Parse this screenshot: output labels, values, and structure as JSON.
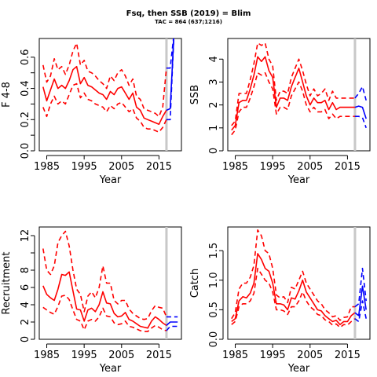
{
  "header": {
    "title": "Fsq, then SSB (2019) = Blim",
    "subtitle": "TAC = 864 (637;1216)"
  },
  "colors": {
    "history": "#ff0000",
    "projection": "#0000ff",
    "marker": "#c8c8c8"
  },
  "chart_data": [
    {
      "type": "line",
      "ylabel": "F 4-8",
      "xlabel": "Year",
      "xlim": [
        1983,
        2021
      ],
      "ylim": [
        0,
        0.72
      ],
      "xticks": [
        1985,
        1995,
        2005,
        2015
      ],
      "yticks": [
        0.0,
        0.1,
        0.2,
        0.3,
        0.4,
        0.5,
        0.6
      ],
      "ytick_labels": [
        "0.0",
        "",
        "0.2",
        "",
        "0.4",
        "",
        "0.6"
      ],
      "marker_year": 2017,
      "x": [
        1984,
        1985,
        1986,
        1987,
        1988,
        1989,
        1990,
        1991,
        1992,
        1993,
        1994,
        1995,
        1996,
        1997,
        1998,
        1999,
        2000,
        2001,
        2002,
        2003,
        2004,
        2005,
        2006,
        2007,
        2008,
        2009,
        2010,
        2011,
        2012,
        2013,
        2014,
        2015,
        2016,
        2017
      ],
      "series": [
        {
          "values": [
            0.41,
            0.32,
            0.39,
            0.46,
            0.4,
            0.42,
            0.4,
            0.45,
            0.52,
            0.54,
            0.43,
            0.47,
            0.42,
            0.41,
            0.39,
            0.37,
            0.36,
            0.33,
            0.38,
            0.36,
            0.4,
            0.41,
            0.37,
            0.33,
            0.37,
            0.28,
            0.26,
            0.21,
            0.2,
            0.19,
            0.18,
            0.17,
            0.22,
            0.26
          ],
          "style": "solid"
        },
        {
          "values": [
            0.55,
            0.44,
            0.48,
            0.59,
            0.52,
            0.54,
            0.49,
            0.55,
            0.64,
            0.69,
            0.55,
            0.58,
            0.51,
            0.5,
            0.48,
            0.45,
            0.43,
            0.4,
            0.48,
            0.45,
            0.5,
            0.52,
            0.48,
            0.42,
            0.46,
            0.35,
            0.33,
            0.27,
            0.26,
            0.25,
            0.24,
            0.22,
            0.28,
            0.53
          ],
          "style": "dashed"
        },
        {
          "values": [
            0.28,
            0.22,
            0.3,
            0.35,
            0.3,
            0.32,
            0.3,
            0.36,
            0.42,
            0.43,
            0.34,
            0.37,
            0.33,
            0.32,
            0.3,
            0.29,
            0.28,
            0.25,
            0.29,
            0.27,
            0.3,
            0.31,
            0.28,
            0.25,
            0.27,
            0.21,
            0.19,
            0.15,
            0.14,
            0.14,
            0.13,
            0.12,
            0.15,
            0.2
          ],
          "style": "dashed"
        }
      ],
      "projection": {
        "x": [
          2017,
          2018,
          2019
        ],
        "series": [
          {
            "values": [
              0.26,
              0.27,
              0.75
            ],
            "style": "solid"
          },
          {
            "values": [
              0.53,
              0.53,
              0.75
            ],
            "style": "dashed"
          },
          {
            "values": [
              0.2,
              0.2,
              0.75
            ],
            "style": "dashed"
          }
        ]
      }
    },
    {
      "type": "line",
      "ylabel": "SSB",
      "xlabel": "Year",
      "xlim": [
        1983,
        2021
      ],
      "ylim": [
        0,
        4.9
      ],
      "xticks": [
        1985,
        1995,
        2005,
        2015
      ],
      "yticks": [
        0,
        1,
        2,
        3,
        4
      ],
      "ytick_labels": [
        "0",
        "1",
        "2",
        "3",
        "4"
      ],
      "marker_year": 2017,
      "x": [
        1984,
        1985,
        1986,
        1987,
        1988,
        1989,
        1990,
        1991,
        1992,
        1993,
        1994,
        1995,
        1996,
        1997,
        1998,
        1999,
        2000,
        2001,
        2002,
        2003,
        2004,
        2005,
        2006,
        2007,
        2008,
        2009,
        2010,
        2011,
        2012,
        2013,
        2014,
        2015,
        2016,
        2017
      ],
      "series": [
        {
          "values": [
            0.9,
            1.1,
            2.1,
            2.2,
            2.2,
            2.7,
            3.3,
            4.1,
            3.9,
            4.1,
            3.5,
            3.2,
            1.9,
            2.3,
            2.3,
            2.2,
            2.8,
            3.2,
            3.6,
            3.0,
            2.4,
            2.0,
            2.3,
            2.1,
            2.1,
            2.2,
            1.8,
            2.1,
            1.8,
            1.9,
            1.9,
            1.9,
            1.9,
            1.9
          ],
          "style": "solid"
        },
        {
          "values": [
            1.1,
            1.3,
            2.5,
            2.5,
            2.5,
            3.1,
            3.8,
            4.7,
            4.6,
            4.7,
            4.0,
            3.7,
            2.2,
            2.6,
            2.6,
            2.5,
            3.2,
            3.6,
            4.0,
            3.5,
            2.9,
            2.4,
            2.7,
            2.4,
            2.5,
            2.7,
            2.2,
            2.6,
            2.3,
            2.3,
            2.3,
            2.3,
            2.3,
            2.3
          ],
          "style": "dashed"
        },
        {
          "values": [
            0.7,
            0.9,
            1.7,
            1.9,
            1.9,
            2.3,
            2.8,
            3.4,
            3.3,
            3.4,
            3.0,
            2.7,
            1.6,
            1.9,
            1.9,
            1.8,
            2.4,
            2.7,
            3.0,
            2.6,
            2.0,
            1.7,
            1.9,
            1.7,
            1.7,
            1.8,
            1.4,
            1.6,
            1.4,
            1.5,
            1.5,
            1.5,
            1.5,
            1.5
          ],
          "style": "dashed"
        }
      ],
      "projection": {
        "x": [
          2017,
          2018,
          2019,
          2020
        ],
        "series": [
          {
            "values": [
              1.9,
              1.95,
              1.9,
              1.4
            ],
            "style": "solid"
          },
          {
            "values": [
              2.3,
              2.5,
              2.8,
              2.2
            ],
            "style": "dashed"
          },
          {
            "values": [
              1.5,
              1.5,
              1.45,
              1.0
            ],
            "style": "dashed"
          }
        ]
      }
    },
    {
      "type": "line",
      "ylabel": "Recruitment",
      "xlabel": "Year",
      "xlim": [
        1983,
        2021
      ],
      "ylim": [
        0,
        13
      ],
      "xticks": [
        1985,
        1995,
        2005,
        2015
      ],
      "yticks": [
        0,
        2,
        4,
        6,
        8,
        10,
        12
      ],
      "ytick_labels": [
        "0",
        "2",
        "4",
        "6",
        "8",
        "",
        "12"
      ],
      "marker_year": 2017,
      "x": [
        1984,
        1985,
        1986,
        1987,
        1988,
        1989,
        1990,
        1991,
        1992,
        1993,
        1994,
        1995,
        1996,
        1997,
        1998,
        1999,
        2000,
        2001,
        2002,
        2003,
        2004,
        2005,
        2006,
        2007,
        2008,
        2009,
        2010,
        2011,
        2012,
        2013,
        2014,
        2015,
        2016,
        2017
      ],
      "series": [
        {
          "values": [
            6.2,
            5.2,
            4.8,
            4.5,
            5.8,
            7.5,
            7.4,
            7.8,
            5.6,
            3.5,
            3.4,
            2.1,
            3.4,
            3.6,
            3.2,
            4.0,
            5.5,
            4.2,
            4.1,
            3.0,
            2.6,
            2.7,
            3.1,
            2.3,
            2.1,
            1.8,
            1.5,
            1.4,
            1.3,
            2.1,
            2.6,
            2.3,
            1.9,
            1.6
          ],
          "style": "solid"
        },
        {
          "values": [
            10.5,
            8.0,
            7.5,
            8.5,
            11.2,
            12.0,
            12.5,
            10.8,
            8.0,
            5.8,
            5.2,
            3.2,
            5.0,
            5.5,
            4.8,
            6.0,
            8.5,
            6.5,
            6.5,
            4.5,
            4.1,
            4.5,
            4.5,
            3.5,
            3.0,
            2.7,
            2.4,
            2.3,
            2.4,
            3.3,
            3.9,
            3.7,
            3.6,
            2.6
          ],
          "style": "dashed"
        },
        {
          "values": [
            3.7,
            3.4,
            3.1,
            2.9,
            3.8,
            5.0,
            5.1,
            4.6,
            3.4,
            2.3,
            2.1,
            1.1,
            2.1,
            2.3,
            2.1,
            2.6,
            3.6,
            2.7,
            2.6,
            1.9,
            1.7,
            1.8,
            2.1,
            1.5,
            1.4,
            1.2,
            1.0,
            0.9,
            0.9,
            1.3,
            1.6,
            1.4,
            1.1,
            1.0
          ],
          "style": "dashed"
        }
      ],
      "projection": {
        "x": [
          2017,
          2018,
          2019,
          2020
        ],
        "series": [
          {
            "values": [
              1.6,
              2.0,
              2.0,
              2.0
            ],
            "style": "solid"
          },
          {
            "values": [
              2.6,
              2.6,
              2.6,
              2.6
            ],
            "style": "dashed"
          },
          {
            "values": [
              1.0,
              1.5,
              1.5,
              1.5
            ],
            "style": "dashed"
          }
        ]
      }
    },
    {
      "type": "line",
      "ylabel": "Catch",
      "xlabel": "Year",
      "xlim": [
        1983,
        2021
      ],
      "ylim": [
        0,
        1.9
      ],
      "xticks": [
        1985,
        1995,
        2005,
        2015
      ],
      "yticks": [
        0.0,
        0.5,
        1.0,
        1.5
      ],
      "ytick_labels": [
        "0.0",
        "0.5",
        "1.0",
        "1.5"
      ],
      "marker_year": 2017,
      "x": [
        1984,
        1985,
        1986,
        1987,
        1988,
        1989,
        1990,
        1991,
        1992,
        1993,
        1994,
        1995,
        1996,
        1997,
        1998,
        1999,
        2000,
        2001,
        2002,
        2003,
        2004,
        2005,
        2006,
        2007,
        2008,
        2009,
        2010,
        2011,
        2012,
        2013,
        2014,
        2015,
        2016,
        2017
      ],
      "series": [
        {
          "values": [
            0.3,
            0.35,
            0.65,
            0.72,
            0.7,
            0.78,
            0.95,
            1.45,
            1.35,
            1.2,
            1.15,
            0.95,
            0.6,
            0.6,
            0.58,
            0.5,
            0.7,
            0.68,
            0.82,
            1.0,
            0.8,
            0.7,
            0.6,
            0.5,
            0.48,
            0.4,
            0.35,
            0.3,
            0.32,
            0.25,
            0.3,
            0.3,
            0.4,
            0.45
          ],
          "style": "solid"
        },
        {
          "values": [
            0.35,
            0.45,
            0.85,
            0.95,
            0.95,
            1.05,
            1.25,
            1.85,
            1.75,
            1.5,
            1.45,
            1.2,
            0.75,
            0.7,
            0.72,
            0.62,
            0.88,
            0.85,
            1.0,
            1.15,
            0.95,
            0.85,
            0.75,
            0.65,
            0.6,
            0.5,
            0.45,
            0.38,
            0.4,
            0.32,
            0.37,
            0.38,
            0.55,
            0.55
          ],
          "style": "dashed"
        },
        {
          "values": [
            0.25,
            0.3,
            0.55,
            0.6,
            0.6,
            0.65,
            0.78,
            1.2,
            1.1,
            1.0,
            0.95,
            0.8,
            0.5,
            0.5,
            0.48,
            0.42,
            0.55,
            0.55,
            0.65,
            0.8,
            0.65,
            0.55,
            0.5,
            0.42,
            0.4,
            0.33,
            0.3,
            0.24,
            0.26,
            0.2,
            0.25,
            0.24,
            0.3,
            0.35
          ],
          "style": "dashed"
        }
      ],
      "projection": {
        "x": [
          2017,
          2018,
          2019,
          2020
        ],
        "series": [
          {
            "values": [
              0.45,
              0.4,
              0.9,
              0.5
            ],
            "style": "solid"
          },
          {
            "values": [
              0.55,
              0.6,
              1.2,
              0.65
            ],
            "style": "dashed"
          },
          {
            "values": [
              0.35,
              0.3,
              0.65,
              0.35
            ],
            "style": "dashed"
          }
        ]
      }
    }
  ]
}
